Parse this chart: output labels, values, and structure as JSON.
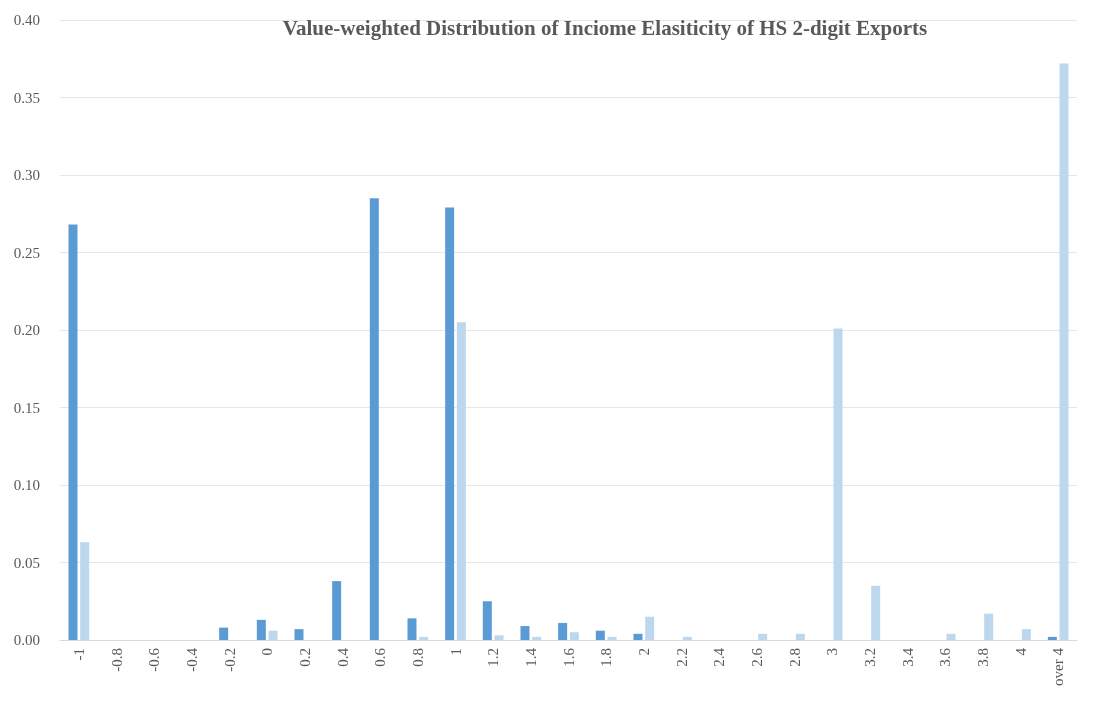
{
  "chart_data": {
    "type": "bar",
    "title": "Value-weighted Distribution of Inciome Elasiticity of HS 2-digit Exports",
    "categories": [
      "-1",
      "-0.8",
      "-0.6",
      "-0.4",
      "-0.2",
      "0",
      "0.2",
      "0.4",
      "0.6",
      "0.8",
      "1",
      "1.2",
      "1.4",
      "1.6",
      "1.8",
      "2",
      "2.2",
      "2.4",
      "2.6",
      "2.8",
      "3",
      "3.2",
      "3.4",
      "3.6",
      "3.8",
      "4",
      "over 4"
    ],
    "series": [
      {
        "color": "#5b9bd5",
        "values": [
          0.268,
          0,
          0,
          0,
          0.008,
          0.013,
          0.007,
          0.038,
          0.285,
          0.014,
          0.279,
          0.025,
          0.009,
          0.011,
          0.006,
          0.004,
          0,
          0,
          0,
          0,
          0,
          0,
          0,
          0,
          0,
          0,
          0.002
        ]
      },
      {
        "color": "#bdd7ee",
        "values": [
          0.063,
          0,
          0,
          0,
          0,
          0.006,
          0,
          0,
          0,
          0.002,
          0.205,
          0.003,
          0.002,
          0.005,
          0.002,
          0.015,
          0.002,
          0,
          0.004,
          0.004,
          0.201,
          0.035,
          0,
          0.004,
          0.017,
          0.007,
          0.372
        ]
      }
    ],
    "ylim": [
      0,
      0.4
    ],
    "yticks": [
      {
        "value": 0,
        "label": "0.00"
      },
      {
        "value": 0.05,
        "label": "0.05"
      },
      {
        "value": 0.1,
        "label": "0.10"
      },
      {
        "value": 0.15,
        "label": "0.15"
      },
      {
        "value": 0.2,
        "label": "0.20"
      },
      {
        "value": 0.25,
        "label": "0.25"
      },
      {
        "value": 0.3,
        "label": "0.30"
      },
      {
        "value": 0.35,
        "label": "0.35"
      },
      {
        "value": 0.4,
        "label": "0.40"
      }
    ],
    "grid": "y"
  }
}
